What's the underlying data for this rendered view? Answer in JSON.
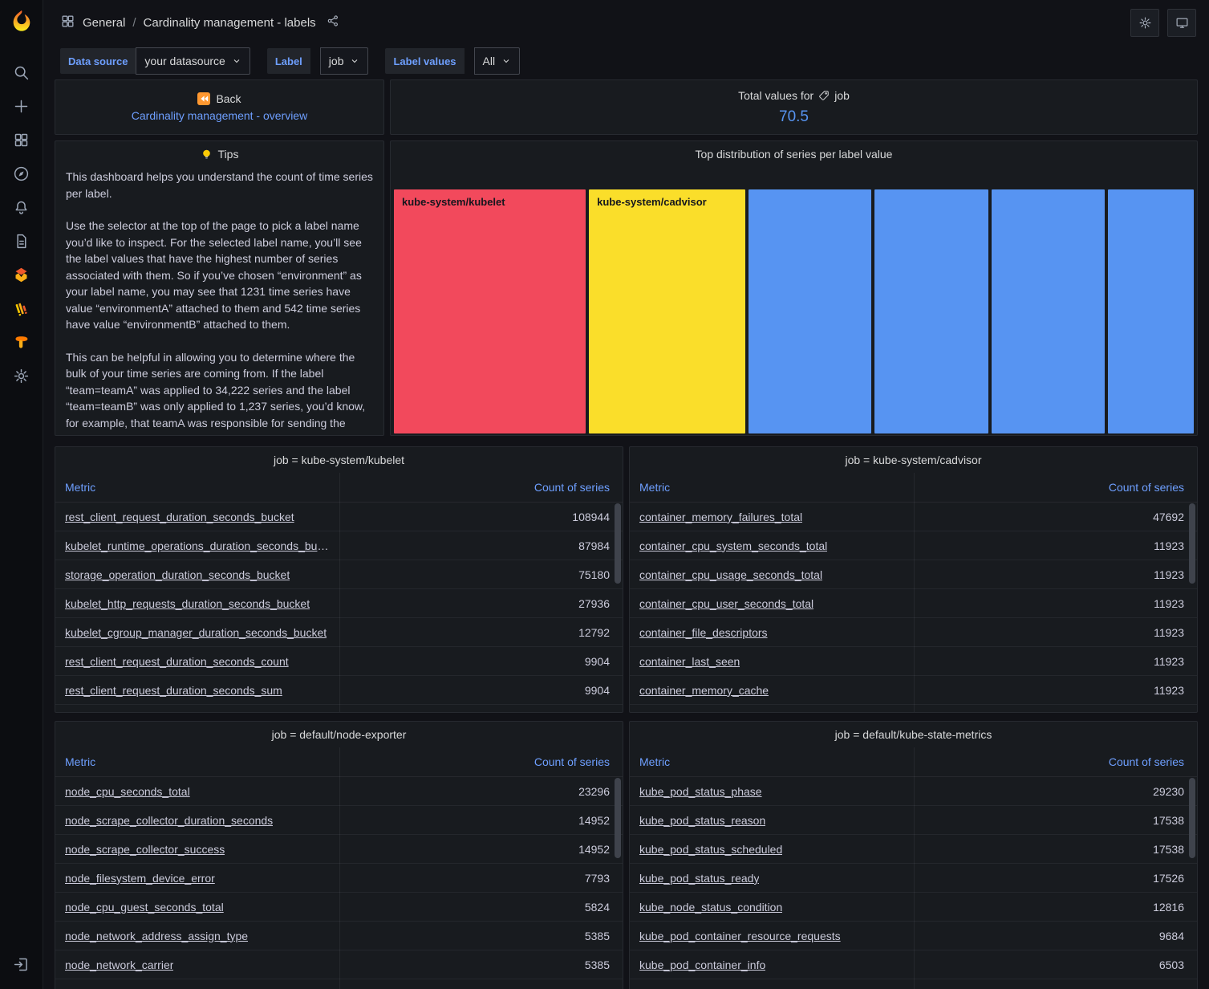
{
  "app": {
    "name": "Grafana"
  },
  "colors": {
    "background": "#111217",
    "panel": "#181b1f",
    "link_blue": "#6e9fff",
    "stat_blue": "#5794F2",
    "bar_red": "#F2495C",
    "bar_yellow": "#FADE2A",
    "bar_blue": "#5794F2",
    "accent_orange": "#ff9830"
  },
  "sidebar": {
    "icons": [
      "grafana-logo",
      "search",
      "add",
      "dashboards",
      "explore",
      "alerting",
      "docs",
      "mimir-app",
      "loki-app",
      "tempo-app",
      "settings",
      "sign-in"
    ]
  },
  "header": {
    "breadcrumb": {
      "section": "General",
      "separator": "/",
      "current": "Cardinality management - labels"
    },
    "action_icons": [
      "share",
      "settings",
      "kiosk-monitor"
    ]
  },
  "filters": [
    {
      "label": "Data source",
      "value": "your datasource"
    },
    {
      "label": "Label",
      "value": "job"
    },
    {
      "label": "Label values",
      "value": "All"
    }
  ],
  "panels": {
    "back": {
      "label": "Back",
      "link": "Cardinality management - overview",
      "icon": "rewind-icon"
    },
    "total": {
      "title_prefix": "Total values for",
      "tag_icon": "tag-icon",
      "title_suffix": "job",
      "value": "70.5"
    },
    "tips": {
      "title": "Tips",
      "icon": "lightbulb-icon",
      "paragraphs": [
        "This dashboard helps you understand the count of time series per label.",
        "Use the selector at the top of the page to pick a label name you’d like to inspect. For the selected label name, you’ll see the label values that have the highest number of series associated with them. So if you’ve chosen “environment” as your label name, you may see that 1231 time series have value “environmentA” attached to them and 542 time series have value “environmentB” attached to them.",
        "This can be helpful in allowing you to determine where the bulk of your time series are coming from. If the label “team=teamA” was applied to 34,222 series and the label “team=teamB” was only applied to 1,237 series, you’d know, for example, that teamA was responsible for sending the"
      ]
    },
    "distribution": {
      "title": "Top distribution of series per label value"
    },
    "tables": [
      {
        "title": "job = kube-system/kubelet",
        "columns": [
          "Metric",
          "Count of series"
        ],
        "rows": [
          [
            "rest_client_request_duration_seconds_bucket",
            "108944"
          ],
          [
            "kubelet_runtime_operations_duration_seconds_buc…",
            "87984"
          ],
          [
            "storage_operation_duration_seconds_bucket",
            "75180"
          ],
          [
            "kubelet_http_requests_duration_seconds_bucket",
            "27936"
          ],
          [
            "kubelet_cgroup_manager_duration_seconds_bucket",
            "12792"
          ],
          [
            "rest_client_request_duration_seconds_count",
            "9904"
          ],
          [
            "rest_client_request_duration_seconds_sum",
            "9904"
          ]
        ]
      },
      {
        "title": "job = kube-system/cadvisor",
        "columns": [
          "Metric",
          "Count of series"
        ],
        "rows": [
          [
            "container_memory_failures_total",
            "47692"
          ],
          [
            "container_cpu_system_seconds_total",
            "11923"
          ],
          [
            "container_cpu_usage_seconds_total",
            "11923"
          ],
          [
            "container_cpu_user_seconds_total",
            "11923"
          ],
          [
            "container_file_descriptors",
            "11923"
          ],
          [
            "container_last_seen",
            "11923"
          ],
          [
            "container_memory_cache",
            "11923"
          ]
        ]
      },
      {
        "title": "job = default/node-exporter",
        "columns": [
          "Metric",
          "Count of series"
        ],
        "rows": [
          [
            "node_cpu_seconds_total",
            "23296"
          ],
          [
            "node_scrape_collector_duration_seconds",
            "14952"
          ],
          [
            "node_scrape_collector_success",
            "14952"
          ],
          [
            "node_filesystem_device_error",
            "7793"
          ],
          [
            "node_cpu_guest_seconds_total",
            "5824"
          ],
          [
            "node_network_address_assign_type",
            "5385"
          ],
          [
            "node_network_carrier",
            "5385"
          ]
        ]
      },
      {
        "title": "job = default/kube-state-metrics",
        "columns": [
          "Metric",
          "Count of series"
        ],
        "rows": [
          [
            "kube_pod_status_phase",
            "29230"
          ],
          [
            "kube_pod_status_reason",
            "17538"
          ],
          [
            "kube_pod_status_scheduled",
            "17538"
          ],
          [
            "kube_pod_status_ready",
            "17526"
          ],
          [
            "kube_node_status_condition",
            "12816"
          ],
          [
            "kube_pod_container_resource_requests",
            "9684"
          ],
          [
            "kube_pod_container_info",
            "6503"
          ]
        ]
      }
    ]
  },
  "chart_data": {
    "type": "bar",
    "title": "Top distribution of series per label value",
    "note": "proportional-width full-height columns; only first two bars show labels",
    "legend": false,
    "axes": false,
    "bars": [
      {
        "label": "kube-system/kubelet",
        "color": "#F2495C",
        "width_pct": 24.5
      },
      {
        "label": "kube-system/cadvisor",
        "color": "#FADE2A",
        "width_pct": 20.0
      },
      {
        "label": "",
        "color": "#5794F2",
        "width_pct": 15.6
      },
      {
        "label": "",
        "color": "#5794F2",
        "width_pct": 14.6
      },
      {
        "label": "",
        "color": "#5794F2",
        "width_pct": 14.4
      },
      {
        "label": "",
        "color": "#5794F2",
        "width_pct": 11.0
      }
    ]
  }
}
